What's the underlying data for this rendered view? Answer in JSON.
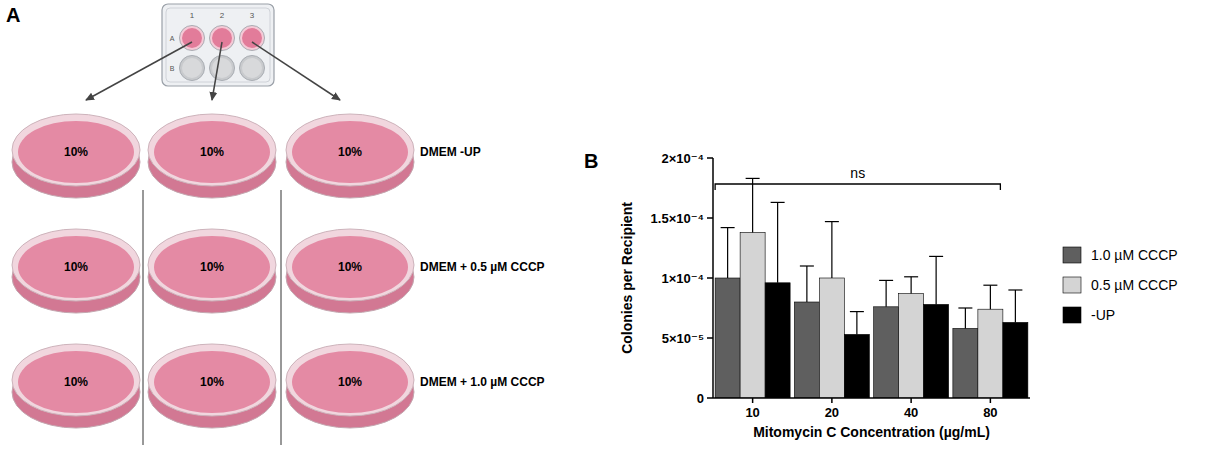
{
  "panel_labels": [
    "A",
    "B"
  ],
  "diagram": {
    "plate": {
      "columns": [
        "1",
        "2",
        "3"
      ],
      "rows": [
        "A",
        "B"
      ]
    },
    "conditions": [
      "DMEM -UP",
      "DMEM + 0.5 µM CCCP",
      "DMEM + 1.0 µM CCCP"
    ],
    "dish_labels": [
      [
        "10%",
        "10%",
        "10%"
      ],
      [
        "10%",
        "10%",
        "10%"
      ],
      [
        "10%",
        "10%",
        "10%"
      ]
    ]
  },
  "chart_data": {
    "type": "bar",
    "x_label": "Mitomycin C Concentration (µg/mL)",
    "y_label": "Colonies per Recipient",
    "categories": [
      "10",
      "20",
      "40",
      "80"
    ],
    "series": [
      {
        "name": "1.0 µM CCCP",
        "color": "#5f5f5f",
        "values": [
          0.0001,
          8e-05,
          7.6e-05,
          5.8e-05
        ],
        "errors": [
          4.2e-05,
          3e-05,
          2.2e-05,
          1.7e-05
        ]
      },
      {
        "name": "0.5 µM CCCP",
        "color": "#d4d4d4",
        "values": [
          0.000138,
          0.0001,
          8.7e-05,
          7.4e-05
        ],
        "errors": [
          4.5e-05,
          4.7e-05,
          1.4e-05,
          2e-05
        ]
      },
      {
        "name": "-UP",
        "color": "#000000",
        "values": [
          9.6e-05,
          5.3e-05,
          7.8e-05,
          6.3e-05
        ],
        "errors": [
          6.7e-05,
          1.9e-05,
          4e-05,
          2.7e-05
        ]
      }
    ],
    "ylim": [
      0,
      0.0002
    ],
    "yticks": [
      0,
      {
        "value": 5e-05,
        "label": "5×10⁻⁵"
      },
      {
        "value": 0.0001,
        "label": "1×10⁻⁴"
      },
      {
        "value": 0.00015,
        "label": "1.5×10⁻⁴"
      },
      {
        "value": 0.0002,
        "label": "2×10⁻⁴"
      }
    ],
    "grid": false,
    "legend": "right",
    "annotations": [
      {
        "text": "ns"
      }
    ]
  }
}
